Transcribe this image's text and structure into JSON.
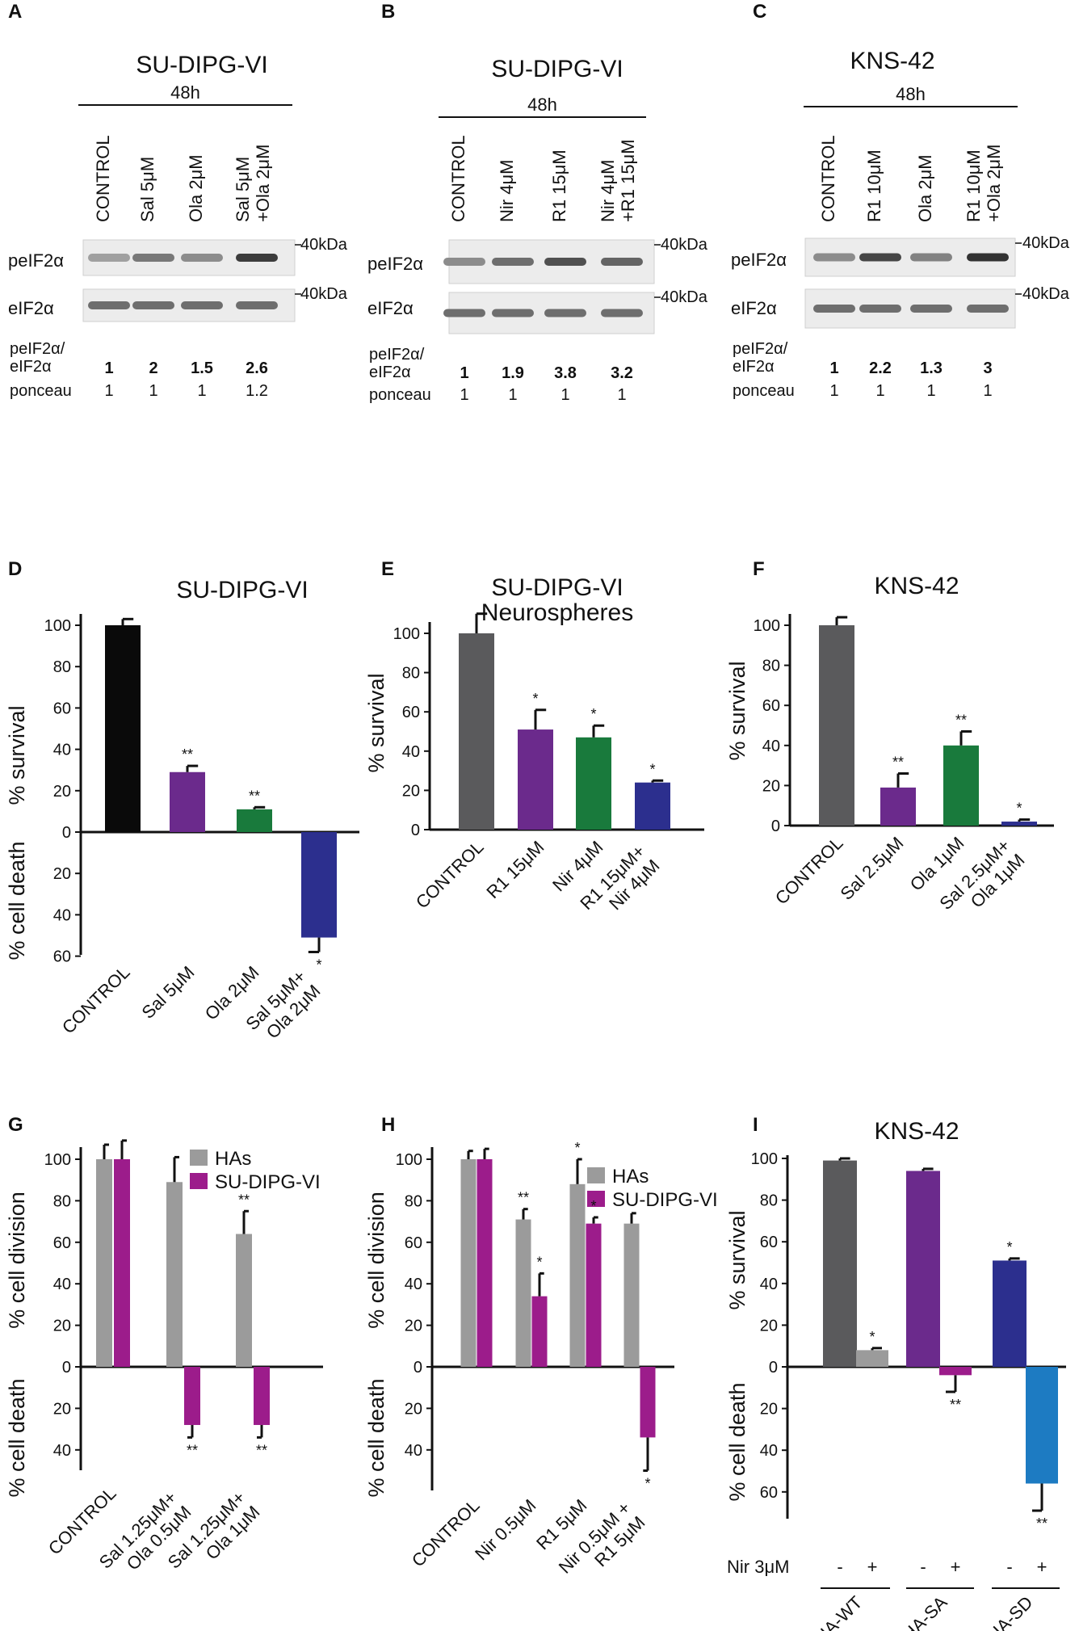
{
  "figure_labels": [
    "A",
    "B",
    "C",
    "D",
    "E",
    "F",
    "G",
    "H",
    "I"
  ],
  "blots": [
    {
      "panel": "A",
      "cell_line": "SU-DIPG-VI",
      "time": "48h",
      "lanes": [
        "CONTROL",
        "Sal 5μM",
        "Ola 2μM",
        "Sal 5μM +Ola 2μM"
      ],
      "rows": [
        "peIF2α",
        "eIF2α"
      ],
      "marker": "40kDa",
      "ratio_label": "peIF2α/ eIF2α",
      "ratio_values": [
        "1",
        "2",
        "1.5",
        "2.6"
      ],
      "ponceau_label": "ponceau",
      "ponceau_values": [
        "1",
        "1",
        "1",
        "1.2"
      ]
    },
    {
      "panel": "B",
      "cell_line": "SU-DIPG-VI",
      "time": "48h",
      "lanes": [
        "CONTROL",
        "Nir 4μM",
        "R1 15μM",
        "Nir 4μM +R1 15μM"
      ],
      "rows": [
        "peIF2α",
        "eIF2α"
      ],
      "marker": "40kDa",
      "ratio_label": "peIF2α/ eIF2α",
      "ratio_values": [
        "1",
        "1.9",
        "3.8",
        "3.2"
      ],
      "ponceau_label": "ponceau",
      "ponceau_values": [
        "1",
        "1",
        "1",
        "1"
      ]
    },
    {
      "panel": "C",
      "cell_line": "KNS-42",
      "time": "48h",
      "lanes": [
        "CONTROL",
        "R1 10μM",
        "Ola 2μM",
        "R1 10μM +Ola 2μM"
      ],
      "rows": [
        "peIF2α",
        "eIF2α"
      ],
      "marker": "40kDa",
      "ratio_label": "peIF2α/ eIF2α",
      "ratio_values": [
        "1",
        "2.2",
        "1.3",
        "3"
      ],
      "ponceau_label": "ponceau",
      "ponceau_values": [
        "1",
        "1",
        "1",
        "1"
      ]
    }
  ],
  "colors": {
    "black": "#0a0a0a",
    "dark_gray": "#5a5a5c",
    "gray": "#9b9b9b",
    "purple": "#6b2a8c",
    "green": "#197a3c",
    "blue": "#2c2f8e",
    "magenta": "#9c1c8b",
    "light_blue": "#1d7bc2"
  },
  "chart_data": [
    {
      "panel": "D",
      "type": "bar",
      "title": "SU-DIPG-VI",
      "ylabel_top": "% survival",
      "ylabel_bottom": "% cell death",
      "yticks_top": [
        0,
        20,
        40,
        60,
        80,
        100
      ],
      "yticks_bottom": [
        20,
        40,
        60
      ],
      "categories": [
        "CONTROL",
        "Sal 5μM",
        "Ola 2μM",
        "Sal 5μM+ Ola 2μM"
      ],
      "values": [
        100,
        29,
        11,
        -51
      ],
      "errors": [
        3,
        3,
        1,
        7
      ],
      "significance": [
        "",
        "**",
        "**",
        "*"
      ],
      "bar_colors": [
        "#0a0a0a",
        "#6b2a8c",
        "#197a3c",
        "#2c2f8e"
      ]
    },
    {
      "panel": "E",
      "type": "bar",
      "title": "SU-DIPG-VI",
      "subtitle": "Neurospheres",
      "ylabel": "% survival",
      "yticks": [
        0,
        20,
        40,
        60,
        80,
        100
      ],
      "categories": [
        "CONTROL",
        "R1 15μM",
        "Nir 4μM",
        "R1 15μM+ Nir 4μM"
      ],
      "values": [
        100,
        51,
        47,
        24
      ],
      "errors": [
        10,
        10,
        6,
        1
      ],
      "significance": [
        "",
        "*",
        "*",
        "*"
      ],
      "bar_colors": [
        "#5a5a5c",
        "#6b2a8c",
        "#197a3c",
        "#2c2f8e"
      ]
    },
    {
      "panel": "F",
      "type": "bar",
      "title": "KNS-42",
      "ylabel": "% survival",
      "yticks": [
        0,
        20,
        40,
        60,
        80,
        100
      ],
      "categories": [
        "CONTROL",
        "Sal 2.5μM",
        "Ola 1μM",
        "Sal 2.5μM+ Ola 1μM"
      ],
      "values": [
        100,
        19,
        40,
        2
      ],
      "errors": [
        4,
        7,
        7,
        1
      ],
      "significance": [
        "",
        "**",
        "**",
        "*"
      ],
      "bar_colors": [
        "#5a5a5c",
        "#6b2a8c",
        "#197a3c",
        "#2c2f8e"
      ]
    },
    {
      "panel": "G",
      "type": "bar",
      "ylabel_top": "% cell division",
      "ylabel_bottom": "% cell death",
      "yticks_top": [
        0,
        20,
        40,
        60,
        80,
        100
      ],
      "yticks_bottom": [
        20,
        40
      ],
      "categories": [
        "CONTROL",
        "Sal 1.25μM+ Ola 0.5μM",
        "Sal 1.25μM+ Ola 1μM"
      ],
      "legend": [
        "HAs",
        "SU-DIPG-VI"
      ],
      "series": [
        {
          "name": "HAs",
          "color": "#9b9b9b",
          "values": [
            100,
            89,
            64
          ],
          "errors": [
            7,
            12,
            11
          ],
          "significance": [
            "",
            "",
            "**"
          ]
        },
        {
          "name": "SU-DIPG-VI",
          "color": "#9c1c8b",
          "values": [
            100,
            -28,
            -28
          ],
          "errors": [
            9,
            6,
            6
          ],
          "significance": [
            "",
            "**",
            "**"
          ]
        }
      ]
    },
    {
      "panel": "H",
      "type": "bar",
      "ylabel_top": "% cell division",
      "ylabel_bottom": "% cell death",
      "yticks_top": [
        0,
        20,
        40,
        60,
        80,
        100
      ],
      "yticks_bottom": [
        20,
        40
      ],
      "categories": [
        "CONTROL",
        "Nir 0.5μM",
        "R1 5μM",
        "Nir 0.5μM + R1 5μM"
      ],
      "legend": [
        "HAs",
        "SU-DIPG-VI"
      ],
      "series": [
        {
          "name": "HAs",
          "color": "#9b9b9b",
          "values": [
            100,
            71,
            88,
            69
          ],
          "errors": [
            4,
            5,
            12,
            5
          ],
          "significance": [
            "",
            "**",
            "*",
            ""
          ]
        },
        {
          "name": "SU-DIPG-VI",
          "color": "#9c1c8b",
          "values": [
            100,
            34,
            69,
            -34
          ],
          "errors": [
            5,
            11,
            3,
            16
          ],
          "significance": [
            "",
            "*",
            "*",
            "*"
          ]
        }
      ]
    },
    {
      "panel": "I",
      "type": "bar",
      "title": "KNS-42",
      "ylabel_top": "% survival",
      "ylabel_bottom": "% cell death",
      "yticks_top": [
        0,
        20,
        40,
        60,
        80,
        100
      ],
      "yticks_bottom": [
        20,
        40,
        60
      ],
      "treatment_label": "Nir 3μM",
      "treatment_signs": [
        "-",
        "+",
        "-",
        "+",
        "-",
        "+"
      ],
      "groups": [
        "HA-WT",
        "HA-SA",
        "HA-SD"
      ],
      "values": [
        99,
        8,
        94,
        -4,
        51,
        -56
      ],
      "errors": [
        1,
        1,
        1,
        8,
        1,
        13
      ],
      "significance": [
        "",
        "*",
        "",
        "**",
        "*",
        "**"
      ],
      "bar_colors": [
        "#5a5a5c",
        "#9b9b9b",
        "#6b2a8c",
        "#9c1c8b",
        "#2c2f8e",
        "#1d7bc2"
      ]
    }
  ]
}
